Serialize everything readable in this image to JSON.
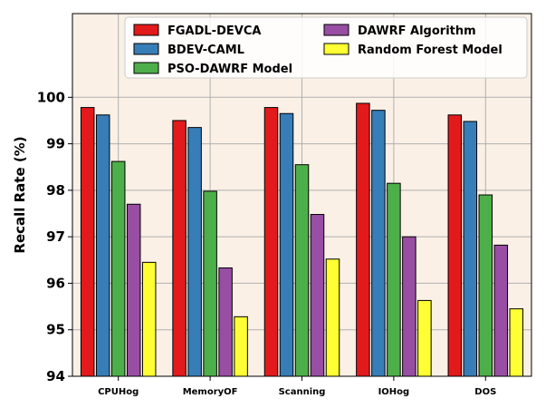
{
  "chart_data": {
    "type": "bar",
    "title": "",
    "xlabel": "",
    "ylabel": "Recall Rate (%)",
    "ylim": [
      94,
      101.8
    ],
    "yticks": [
      94,
      95,
      96,
      97,
      98,
      99,
      100
    ],
    "grid": true,
    "legend_position": "top",
    "categories": [
      "CPUHog",
      "MemoryOF",
      "Scanning",
      "IOHog",
      "DOS"
    ],
    "series": [
      {
        "name": "FGADL-DEVCA",
        "color": "#e31a1c",
        "values": [
          99.78,
          99.5,
          99.78,
          99.87,
          99.62
        ]
      },
      {
        "name": "BDEV-CAML",
        "color": "#377eb8",
        "values": [
          99.62,
          99.35,
          99.65,
          99.72,
          99.48
        ]
      },
      {
        "name": "PSO-DAWRF Model",
        "color": "#4daf4a",
        "values": [
          98.62,
          97.98,
          98.55,
          98.15,
          97.9
        ]
      },
      {
        "name": "DAWRF Algorithm",
        "color": "#984ea3",
        "values": [
          97.7,
          96.33,
          97.48,
          97.0,
          96.82
        ]
      },
      {
        "name": "Random Forest Model",
        "color": "#ffff33",
        "values": [
          96.45,
          95.28,
          96.52,
          95.63,
          95.45
        ]
      }
    ]
  }
}
